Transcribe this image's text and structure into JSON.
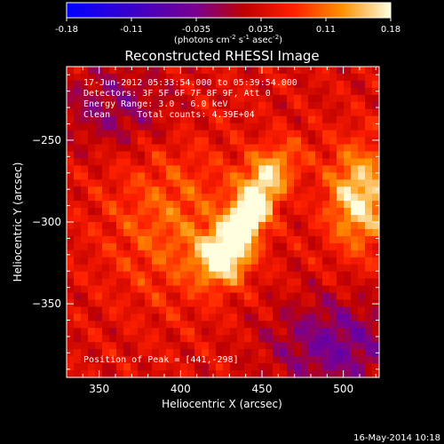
{
  "chart_data": {
    "type": "heatmap",
    "title": "Reconstructed RHESSI Image",
    "xlabel": "Heliocentric X (arcsec)",
    "ylabel": "Heliocentric Y (arcsec)",
    "xlim": [
      330,
      522
    ],
    "ylim": [
      -395,
      -205
    ],
    "x_ticks": [
      350,
      400,
      450,
      500
    ],
    "y_ticks": [
      -250,
      -300,
      -350
    ],
    "colorbar": {
      "range": [
        -0.18,
        0.18
      ],
      "ticks": [
        "-0.18",
        "-0.11",
        "-0.035",
        "0.035",
        "0.11",
        "0.18"
      ],
      "unit_parts": [
        "(photons cm",
        "-2",
        " s",
        "-1",
        " asec",
        "-2",
        ")"
      ]
    },
    "annotations": {
      "line1": "17-Jun-2012 05:33:54.000 to 05:39:54.000",
      "line2": "Detectors: 3F 5F 6F 7F 8F 9F, Att 0",
      "line3": "Energy Range: 3.0 - 6.0 keV",
      "line4": "Clean     Total counts: 4.39E+04",
      "peak": "Position of Peak = [441,-298]"
    },
    "sources": [
      {
        "x": 441,
        "y": -298,
        "amp": 0.17,
        "sx": 18,
        "sy": 8,
        "angle": 60
      },
      {
        "x": 425,
        "y": -322,
        "amp": 0.12,
        "sx": 11,
        "sy": 11,
        "angle": 0
      },
      {
        "x": 510,
        "y": -285,
        "amp": 0.13,
        "sx": 14,
        "sy": 22,
        "angle": 0
      },
      {
        "x": 455,
        "y": -268,
        "amp": 0.08,
        "sx": 16,
        "sy": 10,
        "angle": 40
      },
      {
        "x": 395,
        "y": -300,
        "amp": 0.06,
        "sx": 30,
        "sy": 35,
        "angle": 0
      },
      {
        "x": 360,
        "y": -230,
        "amp": -0.06,
        "sx": 25,
        "sy": 18,
        "angle": 0
      },
      {
        "x": 495,
        "y": -375,
        "amp": -0.08,
        "sx": 28,
        "sy": 20,
        "angle": 0
      }
    ],
    "background": 0.04
  },
  "footer": {
    "date": "16-May-2014 10:18"
  }
}
